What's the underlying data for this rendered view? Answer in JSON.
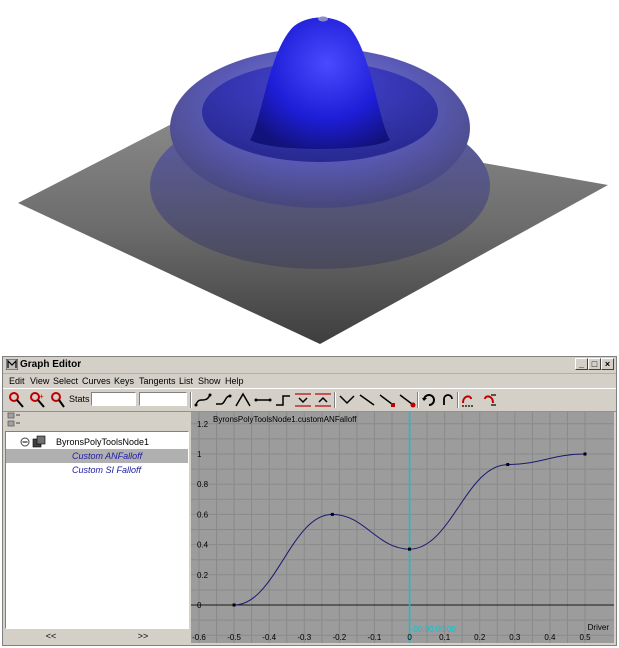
{
  "window": {
    "title": "Graph Editor",
    "controls": {
      "minimize": "_",
      "maximize": "□",
      "close": "×"
    }
  },
  "menu": [
    "Edit",
    "View",
    "Select",
    "Curves",
    "Keys",
    "Tangents",
    "List",
    "Show",
    "Help"
  ],
  "toolbar": {
    "stats_label": "Stats",
    "stats_value_1": "",
    "stats_value_2": "",
    "buttons": [
      "move-key-icon",
      "insert-key-icon",
      "add-key-icon",
      "spline-tangent-icon",
      "clamped-tangent-icon",
      "linear-tangent-icon",
      "flat-tangent-icon",
      "step-tangent-icon",
      "plateau-tangent-icon",
      "buffer-curve-icon",
      "swap-buffer-icon",
      "break-tangents-icon",
      "unify-tangents-icon",
      "free-tangent-weight-icon",
      "lock-tangent-weight-icon",
      "cycle-icon",
      "cycle-offset-icon",
      "pre-infinity-icon",
      "post-infinity-icon"
    ]
  },
  "outliner": {
    "node": "ByronsPolyToolsNode1",
    "attributes": [
      "Custom ANFalloff",
      "Custom SI Falloff"
    ],
    "selected_index": 0,
    "scroll_left": "<<",
    "scroll_right": ">>"
  },
  "graph": {
    "curve_label": "ByronsPolyToolsNode1.customANFalloff",
    "driver_label": "Driver",
    "current_time": "00:00:00:00",
    "background_color": "#9c9c9c",
    "curve_color": "#1a1a70",
    "time_marker_color": "#00c8d8"
  },
  "chart_data": {
    "type": "line",
    "title": "ByronsPolyToolsNode1.customANFalloff",
    "xlabel": "Driver",
    "ylabel": "",
    "xlim": [
      -0.6,
      0.5
    ],
    "ylim": [
      -0.2,
      1.2
    ],
    "x_ticks": [
      "-0.6",
      "-0.5",
      "-0.4",
      "-0.3",
      "-0.2",
      "-0.1",
      "0",
      "0.1",
      "0.2",
      "0.3",
      "0.4",
      "0.5"
    ],
    "y_ticks": [
      "0",
      "0.2",
      "0.4",
      "0.6",
      "0.8",
      "1",
      "1.2"
    ],
    "keys": [
      {
        "x": -0.5,
        "y": 0
      },
      {
        "x": -0.22,
        "y": 0.6
      },
      {
        "x": 0.0,
        "y": 0.37
      },
      {
        "x": 0.28,
        "y": 0.93
      },
      {
        "x": 0.5,
        "y": 1.0
      }
    ],
    "current_time_x": 0.0,
    "grid": true
  }
}
